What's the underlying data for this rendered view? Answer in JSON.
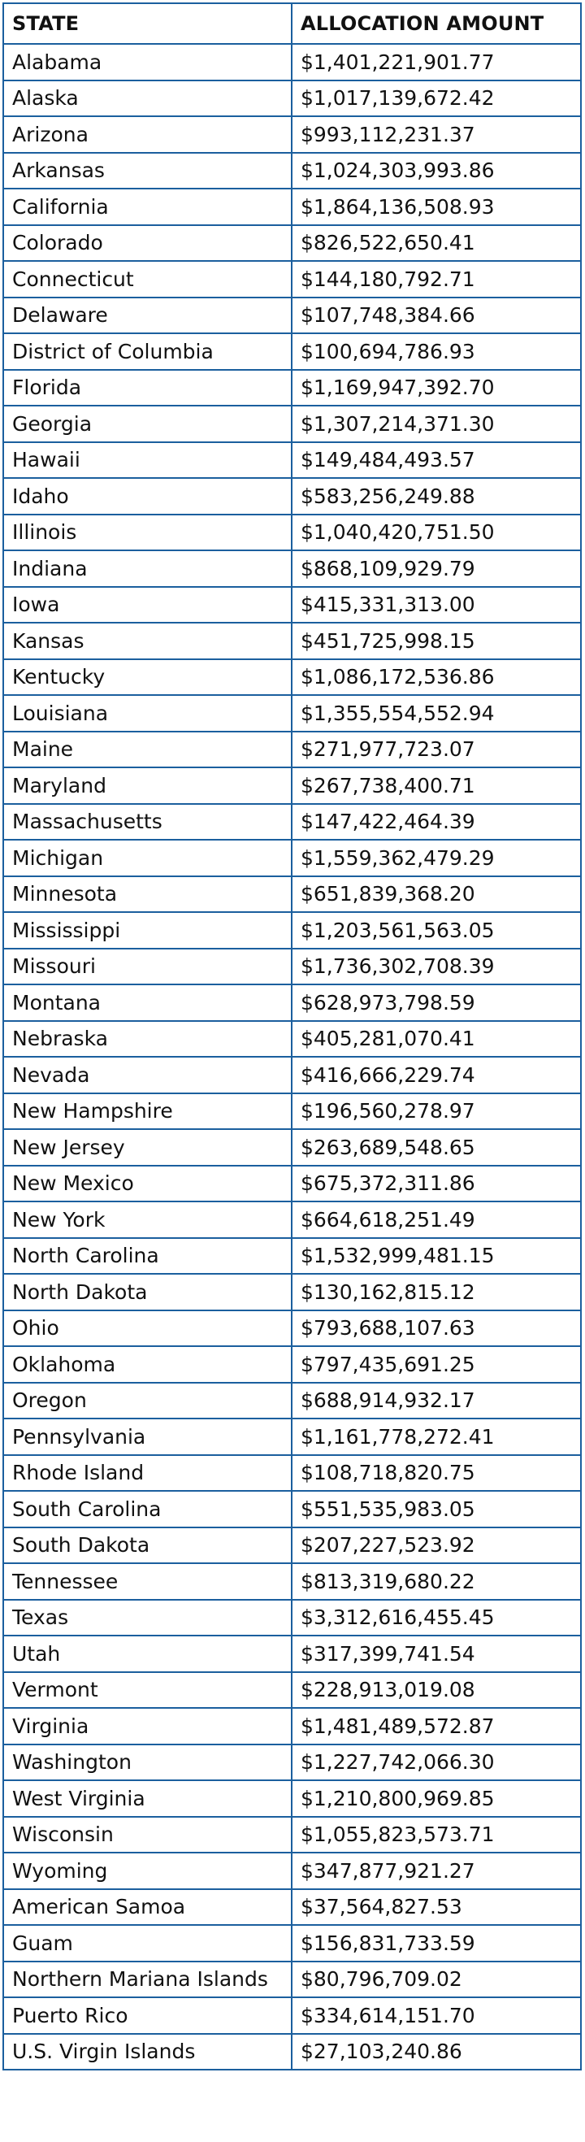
{
  "table": {
    "headers": [
      "STATE",
      "ALLOCATION AMOUNT"
    ],
    "rows": [
      [
        "Alabama",
        "$1,401,221,901.77"
      ],
      [
        "Alaska",
        "$1,017,139,672.42"
      ],
      [
        "Arizona",
        "$993,112,231.37"
      ],
      [
        "Arkansas",
        "$1,024,303,993.86"
      ],
      [
        "California",
        "$1,864,136,508.93"
      ],
      [
        "Colorado",
        "$826,522,650.41"
      ],
      [
        "Connecticut",
        "$144,180,792.71"
      ],
      [
        "Delaware",
        "$107,748,384.66"
      ],
      [
        "District of Columbia",
        "$100,694,786.93"
      ],
      [
        "Florida",
        "$1,169,947,392.70"
      ],
      [
        "Georgia",
        "$1,307,214,371.30"
      ],
      [
        "Hawaii",
        "$149,484,493.57"
      ],
      [
        "Idaho",
        "$583,256,249.88"
      ],
      [
        "Illinois",
        "$1,040,420,751.50"
      ],
      [
        "Indiana",
        "$868,109,929.79"
      ],
      [
        "Iowa",
        "$415,331,313.00"
      ],
      [
        "Kansas",
        "$451,725,998.15"
      ],
      [
        "Kentucky",
        "$1,086,172,536.86"
      ],
      [
        "Louisiana",
        "$1,355,554,552.94"
      ],
      [
        "Maine",
        "$271,977,723.07"
      ],
      [
        "Maryland",
        "$267,738,400.71"
      ],
      [
        "Massachusetts",
        "$147,422,464.39"
      ],
      [
        "Michigan",
        "$1,559,362,479.29"
      ],
      [
        "Minnesota",
        "$651,839,368.20"
      ],
      [
        "Mississippi",
        "$1,203,561,563.05"
      ],
      [
        "Missouri",
        "$1,736,302,708.39"
      ],
      [
        "Montana",
        "$628,973,798.59"
      ],
      [
        "Nebraska",
        "$405,281,070.41"
      ],
      [
        "Nevada",
        "$416,666,229.74"
      ],
      [
        "New Hampshire",
        "$196,560,278.97"
      ],
      [
        "New Jersey",
        "$263,689,548.65"
      ],
      [
        "New Mexico",
        "$675,372,311.86"
      ],
      [
        "New York",
        "$664,618,251.49"
      ],
      [
        "North Carolina",
        "$1,532,999,481.15"
      ],
      [
        "North Dakota",
        "$130,162,815.12"
      ],
      [
        "Ohio",
        "$793,688,107.63"
      ],
      [
        "Oklahoma",
        "$797,435,691.25"
      ],
      [
        "Oregon",
        "$688,914,932.17"
      ],
      [
        "Pennsylvania",
        "$1,161,778,272.41"
      ],
      [
        "Rhode Island",
        "$108,718,820.75"
      ],
      [
        "South Carolina",
        "$551,535,983.05"
      ],
      [
        "South Dakota",
        "$207,227,523.92"
      ],
      [
        "Tennessee",
        "$813,319,680.22"
      ],
      [
        "Texas",
        "$3,312,616,455.45"
      ],
      [
        "Utah",
        "$317,399,741.54"
      ],
      [
        "Vermont",
        "$228,913,019.08"
      ],
      [
        "Virginia",
        "$1,481,489,572.87"
      ],
      [
        "Washington",
        "$1,227,742,066.30"
      ],
      [
        "West Virginia",
        "$1,210,800,969.85"
      ],
      [
        "Wisconsin",
        "$1,055,823,573.71"
      ],
      [
        "Wyoming",
        "$347,877,921.27"
      ],
      [
        "American Samoa",
        "$37,564,827.53"
      ],
      [
        "Guam",
        "$156,831,733.59"
      ],
      [
        "Northern Mariana Islands",
        "$80,796,709.02"
      ],
      [
        "Puerto Rico",
        "$334,614,151.70"
      ],
      [
        "U.S. Virgin Islands",
        "$27,103,240.86"
      ]
    ]
  },
  "colors": {
    "border": "#1b5f9e",
    "text": "#111111",
    "background": "#ffffff"
  }
}
